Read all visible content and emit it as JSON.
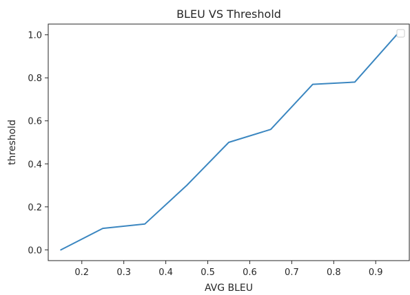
{
  "chart_data": {
    "type": "line",
    "title": "BLEU VS Threshold",
    "xlabel": "AVG BLEU",
    "ylabel": "threshold",
    "xlim": [
      0.12,
      0.98
    ],
    "ylim": [
      -0.05,
      1.05
    ],
    "x_ticks": [
      0.2,
      0.3,
      0.4,
      0.5,
      0.6,
      0.7,
      0.8,
      0.9
    ],
    "x_tick_labels": [
      "0.2",
      "0.3",
      "0.4",
      "0.5",
      "0.6",
      "0.7",
      "0.8",
      "0.9"
    ],
    "y_ticks": [
      0.0,
      0.2,
      0.4,
      0.6,
      0.8,
      1.0
    ],
    "y_tick_labels": [
      "0.0",
      "0.2",
      "0.4",
      "0.6",
      "0.8",
      "1.0"
    ],
    "grid": false,
    "legend": {
      "position": "top-right",
      "entries": []
    },
    "series": [
      {
        "color": "#3a86c0",
        "x": [
          0.15,
          0.25,
          0.35,
          0.45,
          0.55,
          0.65,
          0.75,
          0.85,
          0.95
        ],
        "y": [
          0.0,
          0.1,
          0.12,
          0.3,
          0.5,
          0.56,
          0.77,
          0.78,
          1.0
        ]
      }
    ]
  }
}
